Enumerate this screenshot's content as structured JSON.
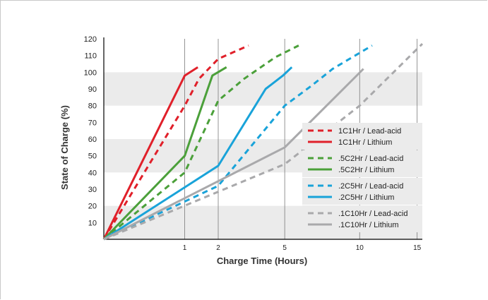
{
  "chart_data": {
    "type": "line",
    "title": "",
    "xlabel": "Charge Time (Hours)",
    "ylabel": "State of Charge (%)",
    "xlim": [
      0,
      15.5
    ],
    "ylim": [
      0,
      120
    ],
    "x_scale": "sqrt",
    "x_ticks": [
      1,
      2,
      5,
      10,
      15
    ],
    "y_ticks": [
      10,
      20,
      30,
      40,
      50,
      60,
      70,
      80,
      90,
      100,
      110,
      120
    ],
    "grid": {
      "horizontal_bands": true,
      "vertical_lines_at": [
        1,
        2,
        5,
        10,
        15
      ]
    },
    "legend_position": "right",
    "series": [
      {
        "name": "1C1Hr / Lead-acid",
        "color": "#e0202a",
        "style": "dashed",
        "x": [
          0,
          1,
          1.38,
          2,
          3.2
        ],
        "y": [
          0,
          80,
          96,
          108,
          116
        ]
      },
      {
        "name": "1C1Hr / Lithium",
        "color": "#e0202a",
        "style": "solid",
        "x": [
          0,
          1,
          1.35
        ],
        "y": [
          0,
          98,
          103
        ]
      },
      {
        "name": ".5C2Hr / Lead-acid",
        "color": "#4ba03a",
        "style": "dashed",
        "x": [
          0,
          1,
          2,
          3,
          4.5,
          5.8
        ],
        "y": [
          0,
          40,
          83,
          96,
          109,
          116
        ]
      },
      {
        "name": ".5C2Hr / Lithium",
        "color": "#4ba03a",
        "style": "solid",
        "x": [
          0,
          1,
          1.8,
          2.3
        ],
        "y": [
          0,
          50,
          98,
          103
        ]
      },
      {
        "name": ".2C5Hr / Lead-acid",
        "color": "#19a3d9",
        "style": "dashed",
        "x": [
          0,
          2,
          5,
          6.6,
          8,
          11
        ],
        "y": [
          0,
          32,
          80,
          92,
          102,
          116
        ]
      },
      {
        "name": ".2C5Hr / Lithium",
        "color": "#19a3d9",
        "style": "solid",
        "x": [
          0,
          2,
          4,
          4.9,
          5.4
        ],
        "y": [
          0,
          44,
          90,
          98,
          103
        ]
      },
      {
        "name": ".1C10Hr / Lead-acid",
        "color": "#a9a9ab",
        "style": "dashed",
        "x": [
          0,
          5,
          10,
          15.5
        ],
        "y": [
          0,
          45,
          80,
          117
        ]
      },
      {
        "name": ".1C10Hr / Lithium",
        "color": "#a9a9ab",
        "style": "solid",
        "x": [
          0,
          5,
          10.3
        ],
        "y": [
          0,
          55,
          102
        ]
      }
    ]
  }
}
